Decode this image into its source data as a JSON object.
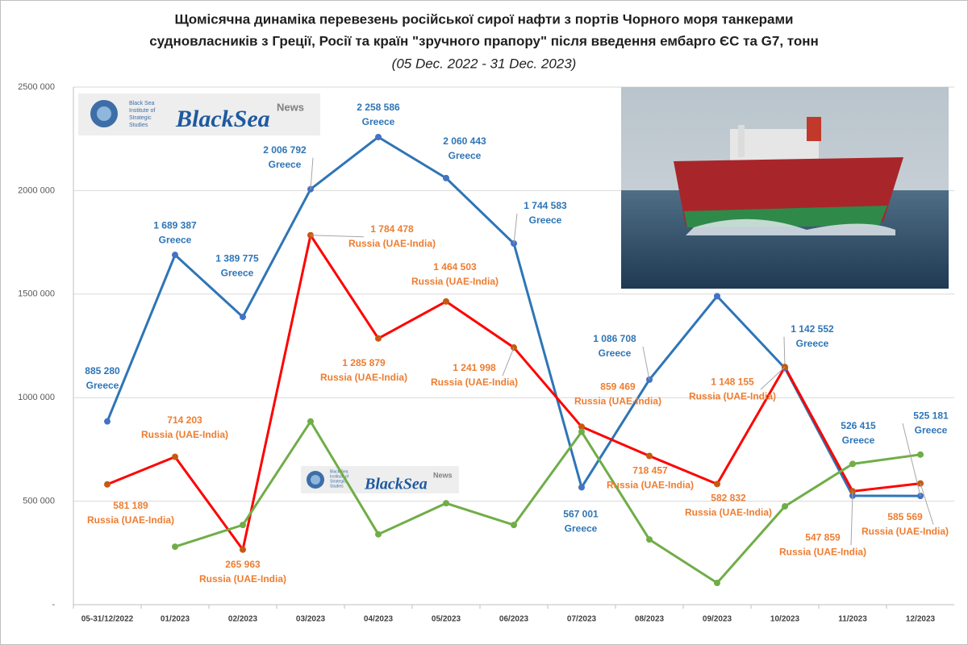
{
  "logo": {
    "institute": [
      "Black Sea",
      "Institute of",
      "Strategic",
      "Studies"
    ],
    "brand": "BlackSea",
    "tag": "News"
  },
  "chart_data": {
    "type": "line",
    "title": [
      "Щомісячна динаміка перевезень російської сирої нафти з портів Чорного моря танкерами",
      "судновласників з Греції, Росії та країн \"зручного прапору\" після введення ембарго ЄС та G7, тонн"
    ],
    "subtitle": "(05 Dec. 2022 - 31 Dec. 2023)",
    "categories": [
      "05-31/12/2022",
      "01/2023",
      "02/2023",
      "03/2023",
      "04/2023",
      "05/2023",
      "06/2023",
      "07/2023",
      "08/2023",
      "09/2023",
      "10/2023",
      "11/2023",
      "12/2023"
    ],
    "series": [
      {
        "name": "Greece",
        "color": "#2e75b6",
        "marker_color": "#4472c4",
        "label_color": "#2e75b6",
        "values": [
          885280,
          1689387,
          1389775,
          2006792,
          2258586,
          2060443,
          1744583,
          567001,
          1086708,
          1490000,
          1142552,
          526415,
          525181
        ],
        "value_labels": [
          "885 280",
          "1 689 387",
          "1 389 775",
          "2 006 792",
          "2 258 586",
          "2 060 443",
          "1 744 583",
          "567 001",
          "1 086 708",
          null,
          "1 142 552",
          "526 415",
          "525 181"
        ]
      },
      {
        "name": "Russia (UAE-India)",
        "color": "#ff0000",
        "marker_color": "#c55a11",
        "label_color": "#ed7d31",
        "values": [
          581189,
          714203,
          265963,
          1784478,
          1285879,
          1464503,
          1241998,
          859469,
          718457,
          582832,
          1148155,
          547859,
          585569
        ],
        "value_labels": [
          "581 189",
          "714 203",
          "265 963",
          "1 784 478",
          "1 285 879",
          "1 464 503",
          "1 241 998",
          "859 469",
          "718 457",
          "582 832",
          "1 148 155",
          "547 859",
          "585 569"
        ]
      },
      {
        "color": "#70ad47",
        "marker_color": "#70ad47",
        "values": [
          null,
          280000,
          385000,
          885000,
          340000,
          490000,
          385000,
          835000,
          315000,
          105000,
          475000,
          680000,
          725000
        ]
      }
    ],
    "ylim": [
      0,
      2500000
    ],
    "yticks": [
      {
        "value": 0,
        "label": "-"
      },
      {
        "value": 500000,
        "label": "500 000"
      },
      {
        "value": 1000000,
        "label": "1000 000"
      },
      {
        "value": 1500000,
        "label": "1500 000"
      },
      {
        "value": 2000000,
        "label": "2000 000"
      },
      {
        "value": 2500000,
        "label": "2500 000"
      }
    ],
    "grid": true
  }
}
